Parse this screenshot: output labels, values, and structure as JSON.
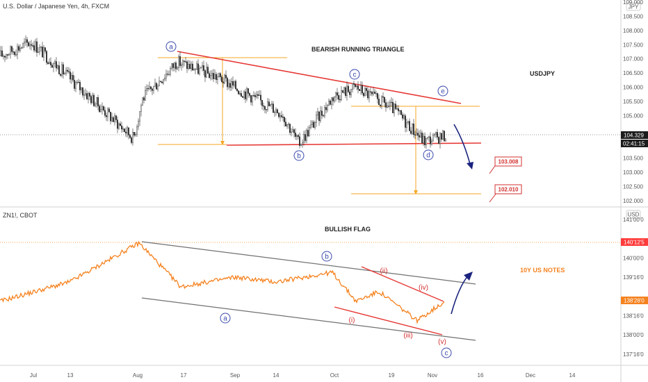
{
  "colors": {
    "candle": "#2b2b2b",
    "triangle_line": "#e53935",
    "level_line": "#f5a623",
    "zn_line": "#f5821f",
    "channel_line": "#707070",
    "wave_circle": "#3949ab",
    "forecast_arrow": "#1a237e",
    "label_red": "#d32f2f",
    "orange_label": "#f5821f"
  },
  "top_panel": {
    "title": "U.S. Dollar / Japanese Yen, 4h, FXCM",
    "currency": "JPY",
    "annotation": "BEARISH RUNNING TRIANGLE",
    "symbol_label": "USDJPY",
    "price_tag": "104.329",
    "countdown_tag": "02:41:15",
    "target_labels": [
      "103.008",
      "102.010"
    ],
    "wave_labels": [
      "a",
      "b",
      "c",
      "d",
      "e"
    ]
  },
  "bottom_panel": {
    "title": "ZN1!, CBOT",
    "currency": "USD",
    "annotation": "BULLISH FLAG",
    "symbol_label": "10Y US NOTES",
    "price_tag": "138'28'0",
    "level_tag": "140'12'5",
    "wave_labels_blue": [
      "a",
      "b",
      "c"
    ],
    "wave_labels_red": [
      "(i)",
      "(ii)",
      "(iii)",
      "(iv)",
      "(v)"
    ]
  },
  "x_axis": {
    "labels": [
      "Jul",
      "13",
      "Aug",
      "17",
      "Sep",
      "14",
      "Oct",
      "19",
      "Nov",
      "16",
      "Dec",
      "14"
    ]
  },
  "chart_data": [
    {
      "type": "line",
      "name": "U.S. Dollar / Japanese Yen, 4h, FXCM",
      "y_unit": "JPY",
      "y_ticks": [
        "109.000",
        "108.500",
        "108.000",
        "107.500",
        "107.000",
        "106.500",
        "106.000",
        "105.500",
        "105.000",
        "104.500",
        "104.000",
        "103.500",
        "103.000",
        "102.500",
        "102.000"
      ],
      "ylim": [
        101.95,
        109.0
      ],
      "x": [
        "Jul",
        "Aug",
        "17",
        "Sep",
        "14",
        "Oct",
        "19",
        "Nov"
      ],
      "key_points": [
        {
          "x": "Jul",
          "y": 107.1
        },
        {
          "x": "13",
          "y": 107.6
        },
        {
          "x": "late Jul",
          "y": 104.2
        },
        {
          "x": "Aug",
          "y": 105.6
        },
        {
          "x": "17",
          "y": 106.9
        },
        {
          "x": "late Aug",
          "y": 106.3
        },
        {
          "x": "Sep",
          "y": 106.0
        },
        {
          "x": "14",
          "y": 105.1
        },
        {
          "x": "late Sep",
          "y": 104.0
        },
        {
          "x": "Oct",
          "y": 105.7
        },
        {
          "x": "early Oct",
          "y": 106.0
        },
        {
          "x": "19",
          "y": 105.2
        },
        {
          "x": "late Oct",
          "y": 104.1
        },
        {
          "x": "Nov",
          "y": 104.3
        }
      ],
      "last_price": 104.329,
      "targets": [
        103.008,
        102.01
      ]
    },
    {
      "type": "line",
      "name": "ZN1!, CBOT",
      "y_unit": "USD",
      "y_ticks": [
        "141'00'0",
        "140'16'0",
        "140'00'0",
        "139'16'0",
        "139'00'0",
        "138'16'0",
        "138'00'0",
        "137'16'0"
      ],
      "ylim": [
        "137'08'0",
        "141'04'0"
      ],
      "x": [
        "Jul",
        "Aug",
        "17",
        "Sep",
        "14",
        "Oct",
        "19",
        "Nov"
      ],
      "key_points": [
        {
          "x": "Jul",
          "y": "138'28'0"
        },
        {
          "x": "13",
          "y": "139'12'0"
        },
        {
          "x": "Aug",
          "y": "140'12'5"
        },
        {
          "x": "17",
          "y": "139'08'0"
        },
        {
          "x": "Sep",
          "y": "139'16'0"
        },
        {
          "x": "14",
          "y": "139'12'0"
        },
        {
          "x": "Oct",
          "y": "139'20'0"
        },
        {
          "x": "early Oct",
          "y": "138'28'0"
        },
        {
          "x": "19",
          "y": "139'04'0"
        },
        {
          "x": "late Oct",
          "y": "138'12'0"
        },
        {
          "x": "Nov",
          "y": "138'28'0"
        }
      ],
      "last_price": "138'28'0"
    }
  ]
}
